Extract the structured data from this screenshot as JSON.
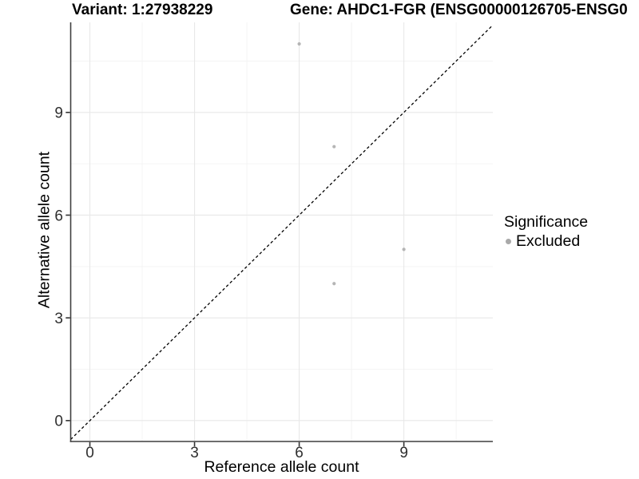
{
  "chart_data": {
    "type": "scatter",
    "title_variant": "Variant: 1:27938229",
    "title_gene": "Gene: AHDC1-FGR (ENSG00000126705-ENSG0",
    "xlabel": "Reference allele count",
    "ylabel": "Alternative allele count",
    "xlim": [
      -0.55,
      11.55
    ],
    "ylim": [
      -0.61,
      11.63
    ],
    "xticks": [
      0,
      3,
      6,
      9
    ],
    "yticks": [
      0,
      3,
      6,
      9
    ],
    "x_minor_gridlines": [
      1.5,
      4.5,
      7.5,
      10.5
    ],
    "y_minor_gridlines": [
      1.5,
      4.5,
      7.5,
      10.5
    ],
    "grid": "on",
    "series": [
      {
        "name": "Excluded",
        "color": "#b5b5b5",
        "points": [
          {
            "x": 6,
            "y": 11
          },
          {
            "x": 7,
            "y": 8
          },
          {
            "x": 9,
            "y": 5
          },
          {
            "x": 7,
            "y": 4
          }
        ]
      }
    ],
    "identity_line": {
      "style": "dashed",
      "color": "#000000",
      "meaning": "y = x"
    },
    "legend": {
      "title": "Significance",
      "position": "right",
      "items": [
        {
          "label": "Excluded",
          "color": "#a9a9a9",
          "marker": "circle-icon"
        }
      ]
    }
  },
  "colors": {
    "background": "#ffffff",
    "axis_line": "#3f3f3f",
    "tick_label": "#2f2f2f",
    "grid_major": "#e8e8e8",
    "grid_minor": "#f4f4f4"
  }
}
